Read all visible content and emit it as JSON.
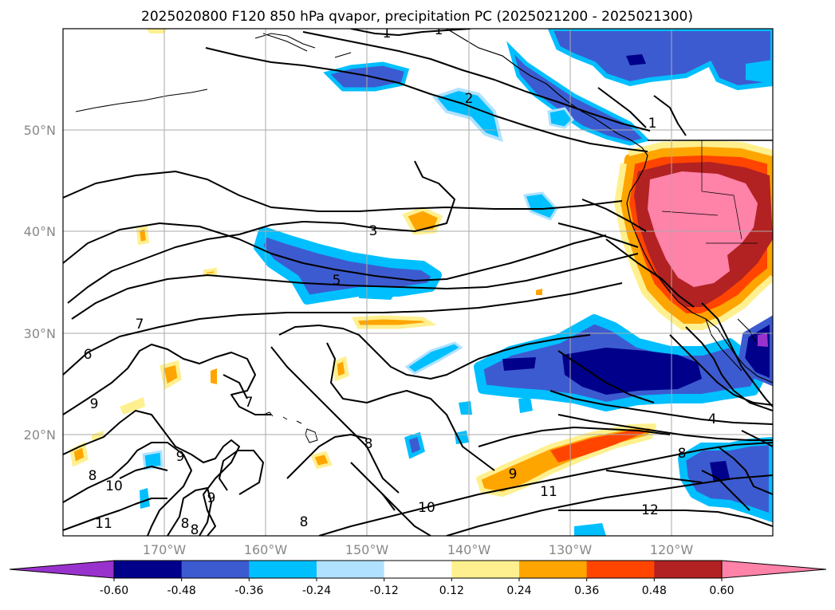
{
  "title": "2025020800 F120 850 hPa qvapor, precipitation PC (2025021200 - 2025021300)",
  "map": {
    "lon_range": [
      -180,
      -110
    ],
    "lat_range": [
      10,
      60
    ],
    "lat_ticks": [
      {
        "value": 50,
        "label": "50°N"
      },
      {
        "value": 40,
        "label": "40°N"
      },
      {
        "value": 30,
        "label": "30°N"
      },
      {
        "value": 20,
        "label": "20°N"
      }
    ],
    "lon_ticks": [
      {
        "value": -170,
        "label": "170°W"
      },
      {
        "value": -160,
        "label": "160°W"
      },
      {
        "value": -150,
        "label": "150°W"
      },
      {
        "value": -140,
        "label": "140°W"
      },
      {
        "value": -130,
        "label": "130°W"
      },
      {
        "value": -120,
        "label": "120°W"
      }
    ],
    "grid": true
  },
  "colorbar": {
    "levels": [
      "-0.60",
      "-0.48",
      "-0.36",
      "-0.24",
      "-0.12",
      "0.12",
      "0.24",
      "0.36",
      "0.48",
      "0.60"
    ],
    "colors": [
      "#9932cc",
      "#00008b",
      "#3d5bd0",
      "#00bfff",
      "#b0e2ff",
      "#ffffff",
      "#fff08f",
      "#ffa500",
      "#ff4500",
      "#b22222",
      "#ff82a9"
    ],
    "extend": "both"
  },
  "contour_labels": [
    "1",
    "1",
    "2",
    "1",
    "3",
    "5",
    "7",
    "6",
    "9",
    "7",
    "8",
    "9",
    "8",
    "10",
    "9",
    "11",
    "8",
    "8",
    "8",
    "9",
    "10",
    "11",
    "12",
    "8",
    "4"
  ],
  "colors": {
    "contour": "#000000",
    "grid": "#aaaaaa",
    "tick_label": "#888888"
  }
}
